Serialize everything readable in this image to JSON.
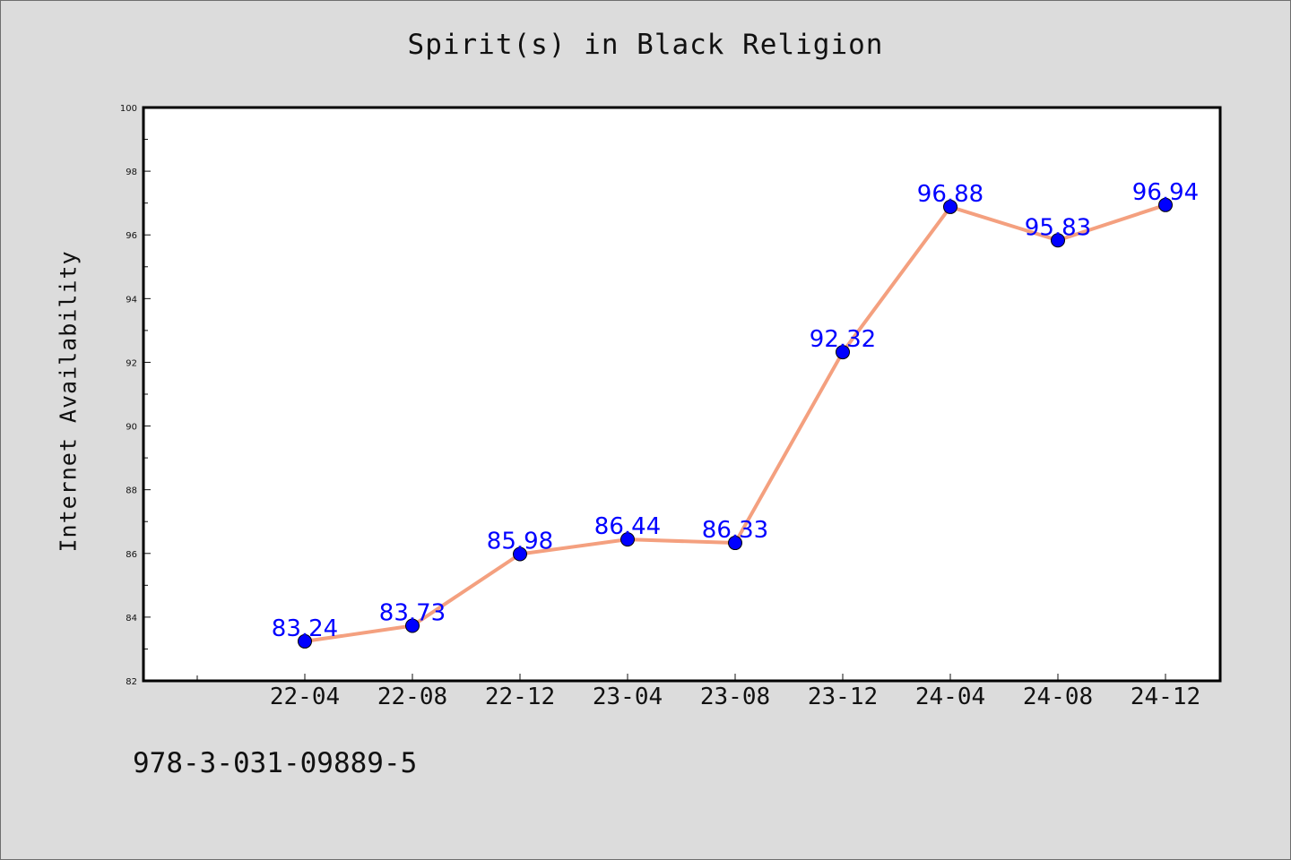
{
  "chart_data": {
    "type": "line",
    "title": "Spirit(s) in Black Religion",
    "xlabel": "",
    "ylabel": "Internet Availability",
    "categories": [
      "22-04",
      "22-08",
      "22-12",
      "23-04",
      "23-08",
      "23-12",
      "24-04",
      "24-08",
      "24-12"
    ],
    "series": [
      {
        "values": [
          83.24,
          83.73,
          85.98,
          86.44,
          86.33,
          92.32,
          96.88,
          95.83,
          96.94
        ],
        "data_labels": [
          "83.24",
          "83.73",
          "85.98",
          "86.44",
          "86.33",
          "92.32",
          "96.88",
          "95.83",
          "96.94"
        ],
        "line_color": "#f4a07f",
        "marker_color": "#0000ff"
      }
    ],
    "ylim": [
      82,
      100
    ],
    "yticks": [
      "82",
      "84",
      "86",
      "88",
      "90",
      "92",
      "94",
      "96",
      "98",
      "100"
    ],
    "grid": false,
    "legend": "none"
  },
  "footnote": "978-3-031-09889-5",
  "colors": {
    "background": "#dcdcdc",
    "plot_background": "#ffffff",
    "line": "#f4a07f",
    "marker": "#0000ff",
    "data_label": "#0000ff"
  }
}
